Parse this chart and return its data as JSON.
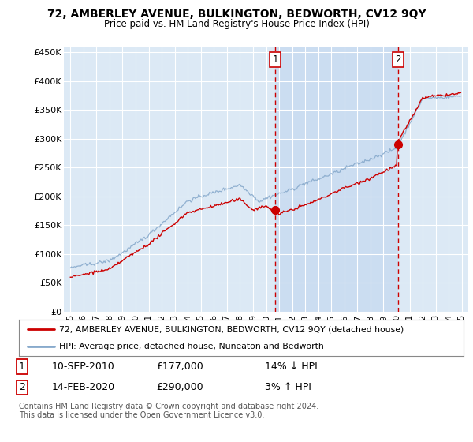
{
  "title": "72, AMBERLEY AVENUE, BULKINGTON, BEDWORTH, CV12 9QY",
  "subtitle": "Price paid vs. HM Land Registry's House Price Index (HPI)",
  "bg_color": "#dce9f5",
  "shade_color": "#c5d9f0",
  "line_color_red": "#cc0000",
  "line_color_blue": "#88aacc",
  "dashed_color": "#cc0000",
  "sale1_year": 2010.7,
  "sale1_price": 177000,
  "sale2_year": 2020.12,
  "sale2_price": 290000,
  "sale1_date": "10-SEP-2010",
  "sale1_price_str": "£177,000",
  "sale1_hpi": "14% ↓ HPI",
  "sale2_date": "14-FEB-2020",
  "sale2_price_str": "£290,000",
  "sale2_hpi": "3% ↑ HPI",
  "legend1": "72, AMBERLEY AVENUE, BULKINGTON, BEDWORTH, CV12 9QY (detached house)",
  "legend2": "HPI: Average price, detached house, Nuneaton and Bedworth",
  "footer": "Contains HM Land Registry data © Crown copyright and database right 2024.\nThis data is licensed under the Open Government Licence v3.0.",
  "ylim": [
    0,
    460000
  ],
  "yticks": [
    0,
    50000,
    100000,
    150000,
    200000,
    250000,
    300000,
    350000,
    400000,
    450000
  ],
  "xlim_start": 1994.5,
  "xlim_end": 2025.5
}
